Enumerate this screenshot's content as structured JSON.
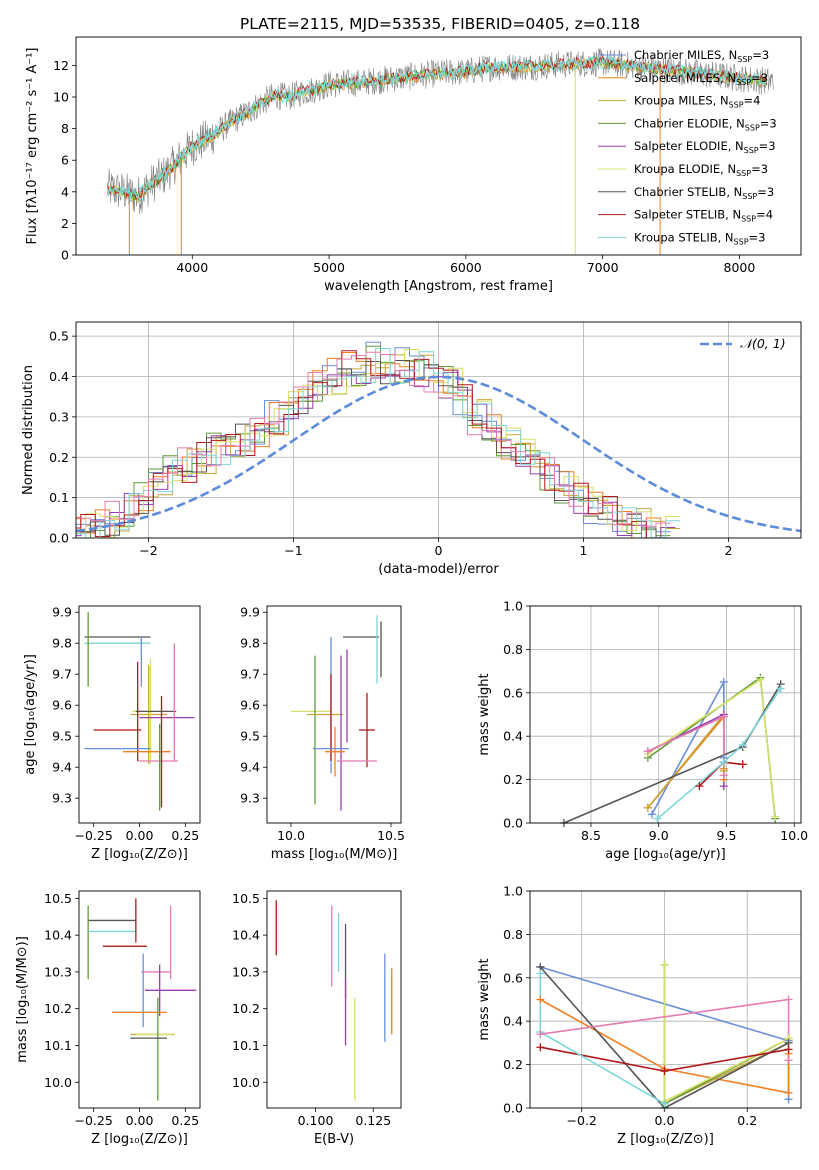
{
  "figure": {
    "title": "PLATE=2115, MJD=53535, FIBERID=0405, z=0.118"
  },
  "colors": {
    "Chabrier MILES": "#6a8ed8",
    "Salpeter MILES": "#ee7f22",
    "Kroupa MILES": "#c6a63a",
    "Chabrier ELODIE": "#5e9b3a",
    "Salpeter ELODIE": "#9a3fb0",
    "Kroupa ELODIE": "#d8e06a",
    "Chabrier STELIB": "#555555",
    "Salpeter STELIB": "#b0191c",
    "Kroupa STELIB": "#7ed6da",
    "pink": "#e57cb0",
    "normal_curve": "#5b8bd9",
    "grid": "#b0b0b0",
    "data_spectrum": "#7f7f7f"
  },
  "chart_data": [
    {
      "id": "spectrum",
      "type": "line",
      "xlabel": "wavelength [Angstrom, rest frame]",
      "ylabel": "Flux [fλ10⁻¹⁷ erg cm⁻² s⁻¹ A⁻¹]",
      "xlim": [
        3150,
        8450
      ],
      "ylim": [
        0,
        13.8
      ],
      "xticks": [
        4000,
        5000,
        6000,
        7000,
        8000
      ],
      "yticks": [
        0,
        2,
        4,
        6,
        8,
        10,
        12
      ],
      "grid": false,
      "legend_position": "upper right",
      "spectrum_profile": {
        "x": [
          3380,
          3500,
          3600,
          3700,
          3800,
          3900,
          4000,
          4100,
          4200,
          4300,
          4400,
          4500,
          4600,
          4700,
          4800,
          4900,
          5000,
          5200,
          5400,
          5600,
          5800,
          6000,
          6200,
          6400,
          6600,
          6800,
          7000,
          7200,
          7400,
          7600,
          7800,
          8000,
          8200
        ],
        "y": [
          4.2,
          4.0,
          3.7,
          4.5,
          5.1,
          6.0,
          6.9,
          7.3,
          7.9,
          8.5,
          9.0,
          9.6,
          10.1,
          10.0,
          10.3,
          10.5,
          10.8,
          10.9,
          11.1,
          11.3,
          11.5,
          11.6,
          11.9,
          11.9,
          12.0,
          12.1,
          12.2,
          12.0,
          11.8,
          11.6,
          11.4,
          11.2,
          11.0
        ]
      },
      "series": [
        {
          "name": "Chabrier MILES, N<sub>SSP</sub>=3"
        },
        {
          "name": "Salpeter MILES, N<sub>SSP</sub>=3"
        },
        {
          "name": "Kroupa MILES, N<sub>SSP</sub>=4"
        },
        {
          "name": "Chabrier ELODIE, N<sub>SSP</sub>=3"
        },
        {
          "name": "Salpeter ELODIE, N<sub>SSP</sub>=3"
        },
        {
          "name": "Kroupa ELODIE, N<sub>SSP</sub>=3"
        },
        {
          "name": "Chabrier STELIB, N<sub>SSP</sub>=3"
        },
        {
          "name": "Salpeter STELIB, N<sub>SSP</sub>=4"
        },
        {
          "name": "Kroupa STELIB, N<sub>SSP</sub>=3"
        }
      ]
    },
    {
      "id": "residuals",
      "type": "line",
      "xlabel": "(data-model)/error",
      "ylabel": "Normed distribution",
      "xlim": [
        -2.5,
        2.5
      ],
      "ylim": [
        0,
        0.535
      ],
      "xticks": [
        -2,
        -1,
        0,
        1,
        2
      ],
      "yticks": [
        0.0,
        0.1,
        0.2,
        0.3,
        0.4,
        0.5
      ],
      "grid": true,
      "legend": "𝒩(0, 1)",
      "legend_position": "upper right",
      "bin_width": 0.1,
      "histogram_profile": [
        0.02,
        0.03,
        0.05,
        0.07,
        0.1,
        0.13,
        0.16,
        0.18,
        0.2,
        0.22,
        0.24,
        0.24,
        0.26,
        0.3,
        0.33,
        0.35,
        0.38,
        0.4,
        0.42,
        0.41,
        0.44,
        0.42,
        0.43,
        0.42,
        0.4,
        0.38,
        0.34,
        0.3,
        0.27,
        0.24,
        0.22,
        0.19,
        0.16,
        0.13,
        0.1,
        0.08,
        0.06,
        0.04,
        0.03,
        0.02
      ]
    },
    {
      "id": "age-vs-Z",
      "type": "scatter",
      "xlabel": "Z [log₁₀(Z/Z⊙)]",
      "ylabel": "age  [log₁₀(age/yr)]",
      "xlim": [
        -0.33,
        0.33
      ],
      "ylim": [
        9.22,
        9.92
      ],
      "xticks": [
        -0.25,
        0.0,
        0.25
      ],
      "yticks": [
        9.3,
        9.4,
        9.5,
        9.6,
        9.7,
        9.8,
        9.9
      ],
      "points": [
        {
          "c": "Chabrier STELIB",
          "x": -0.12,
          "y": 9.82,
          "xe": 0.18,
          "ye": 0
        },
        {
          "c": "Kroupa STELIB",
          "x": -0.12,
          "y": 9.8,
          "xe": 0.18,
          "ye": 0
        },
        {
          "c": "Chabrier ELODIE",
          "x": -0.28,
          "y": 9.78,
          "xe": 0,
          "ye": 0.12
        },
        {
          "c": "Chabrier MILES",
          "x": 0.01,
          "y": 9.74,
          "xe": 0,
          "ye": 0.08
        },
        {
          "c": "Kroupa MILES",
          "x": 0.05,
          "y": 9.57,
          "xe": 0.1,
          "ye": 0.16
        },
        {
          "c": "Kroupa ELODIE",
          "x": 0.06,
          "y": 9.58,
          "xe": 0.1,
          "ye": 0.17
        },
        {
          "c": "Chabrier STELIB",
          "x": 0.09,
          "y": 9.58,
          "xe": 0.11,
          "ye": 0
        },
        {
          "c": "Salpeter ELODIE",
          "x": 0.15,
          "y": 9.56,
          "xe": 0.15,
          "ye": 0
        },
        {
          "c": "Salpeter STELIB",
          "x": -0.12,
          "y": 9.52,
          "xe": 0.13,
          "ye": 0
        },
        {
          "c": "Salpeter STELIB",
          "x": -0.01,
          "y": 9.58,
          "xe": 0,
          "ye": 0.16
        },
        {
          "c": "Chabrier MILES",
          "x": -0.12,
          "y": 9.46,
          "xe": 0.18,
          "ye": 0
        },
        {
          "c": "Salpeter MILES",
          "x": 0.04,
          "y": 9.45,
          "xe": 0.13,
          "ye": 0
        },
        {
          "c": "pink",
          "x": 0.1,
          "y": 9.42,
          "xe": 0.11,
          "ye": 0
        },
        {
          "c": "pink",
          "x": 0.19,
          "y": 9.61,
          "xe": 0,
          "ye": 0.19
        },
        {
          "c": "Chabrier ELODIE",
          "x": 0.11,
          "y": 9.4,
          "xe": 0,
          "ye": 0.14
        },
        {
          "c": "Salpeter STELIB",
          "x": 0.12,
          "y": 9.45,
          "xe": 0,
          "ye": 0.18
        }
      ]
    },
    {
      "id": "age-vs-mass",
      "type": "scatter",
      "xlabel": "mass [log₁₀(M/M⊙)]",
      "ylabel": "",
      "xlim": [
        9.88,
        10.55
      ],
      "ylim": [
        9.22,
        9.92
      ],
      "xticks": [
        10.0,
        10.5
      ],
      "yticks": [
        9.3,
        9.4,
        9.5,
        9.6,
        9.7,
        9.8,
        9.9
      ],
      "points": [
        {
          "c": "Chabrier STELIB",
          "x": 10.35,
          "y": 9.82,
          "xe": 0.09,
          "ye": 0
        },
        {
          "c": "Kroupa STELIB",
          "x": 10.43,
          "y": 9.78,
          "xe": 0,
          "ye": 0.11
        },
        {
          "c": "Chabrier STELIB",
          "x": 10.45,
          "y": 9.78,
          "xe": 0,
          "ye": 0.09
        },
        {
          "c": "Chabrier MILES",
          "x": 10.2,
          "y": 9.6,
          "xe": 0,
          "ye": 0.22
        },
        {
          "c": "Kroupa ELODIE",
          "x": 10.1,
          "y": 9.58,
          "xe": 0.1,
          "ye": 0
        },
        {
          "c": "Chabrier ELODIE",
          "x": 10.12,
          "y": 9.52,
          "xe": 0,
          "ye": 0.24
        },
        {
          "c": "Kroupa MILES",
          "x": 10.17,
          "y": 9.57,
          "xe": 0.09,
          "ye": 0
        },
        {
          "c": "Salpeter ELODIE",
          "x": 10.25,
          "y": 9.51,
          "xe": 0,
          "ye": 0.25
        },
        {
          "c": "Salpeter STELIB",
          "x": 10.2,
          "y": 9.56,
          "xe": 0,
          "ye": 0.14
        },
        {
          "c": "Salpeter STELIB",
          "x": 10.38,
          "y": 9.52,
          "xe": 0.04,
          "ye": 0.12
        },
        {
          "c": "Chabrier MILES",
          "x": 10.2,
          "y": 9.46,
          "xe": 0.09,
          "ye": 0
        },
        {
          "c": "Salpeter MILES",
          "x": 10.22,
          "y": 9.45,
          "xe": 0.05,
          "ye": 0.08
        },
        {
          "c": "pink",
          "x": 10.33,
          "y": 9.42,
          "xe": 0.1,
          "ye": 0
        },
        {
          "c": "Salpeter ELODIE",
          "x": 10.28,
          "y": 9.63,
          "xe": 0,
          "ye": 0.15
        }
      ]
    },
    {
      "id": "weight-vs-age",
      "type": "line",
      "xlabel": "age  [log₁₀(age/yr)]",
      "ylabel": "mass weight",
      "xlim": [
        8.05,
        10.05
      ],
      "ylim": [
        0,
        1
      ],
      "xticks": [
        8.5,
        9.0,
        9.5,
        10.0
      ],
      "yticks": [
        0.0,
        0.2,
        0.4,
        0.6,
        0.8,
        1.0
      ],
      "grid": true,
      "series": [
        {
          "c": "Chabrier MILES",
          "x": [
            8.95,
            9.48,
            9.48
          ],
          "y": [
            0.04,
            0.65,
            0.3
          ]
        },
        {
          "c": "Salpeter MILES",
          "x": [
            8.92,
            9.48,
            9.48,
            9.48
          ],
          "y": [
            0.07,
            0.49,
            0.2,
            0.25
          ]
        },
        {
          "c": "Kroupa MILES",
          "x": [
            8.92,
            9.48,
            9.48
          ],
          "y": [
            0.07,
            0.5,
            0.24
          ]
        },
        {
          "c": "Chabrier ELODIE",
          "x": [
            8.92,
            9.75,
            9.86
          ],
          "y": [
            0.3,
            0.67,
            0.02
          ]
        },
        {
          "c": "Salpeter ELODIE",
          "x": [
            8.92,
            9.48,
            9.48
          ],
          "y": [
            0.33,
            0.5,
            0.17
          ]
        },
        {
          "c": "Kroupa ELODIE",
          "x": [
            8.92,
            9.75,
            9.86
          ],
          "y": [
            0.32,
            0.66,
            0.03
          ]
        },
        {
          "c": "Chabrier STELIB",
          "x": [
            8.3,
            9.62,
            9.9
          ],
          "y": [
            0.0,
            0.35,
            0.64
          ]
        },
        {
          "c": "Salpeter STELIB",
          "x": [
            9.3,
            9.48,
            9.62,
            9.62
          ],
          "y": [
            0.17,
            0.28,
            0.27,
            0.27
          ]
        },
        {
          "c": "Kroupa STELIB",
          "x": [
            8.99,
            9.48,
            9.62,
            9.9
          ],
          "y": [
            0.02,
            0.28,
            0.36,
            0.62
          ]
        },
        {
          "c": "pink",
          "x": [
            8.92,
            9.48,
            9.48
          ],
          "y": [
            0.33,
            0.49,
            0.22
          ]
        }
      ]
    },
    {
      "id": "mass-vs-Z",
      "type": "scatter",
      "xlabel": "Z [log₁₀(Z/Z⊙)]",
      "ylabel": "mass [log₁₀(M/M⊙)]",
      "xlim": [
        -0.33,
        0.33
      ],
      "ylim": [
        9.93,
        10.52
      ],
      "xticks": [
        -0.25,
        0.0,
        0.25
      ],
      "yticks": [
        10.0,
        10.1,
        10.2,
        10.3,
        10.4,
        10.5
      ],
      "points": [
        {
          "c": "Chabrier STELIB",
          "x": -0.15,
          "y": 10.44,
          "xe": 0.13,
          "ye": 0
        },
        {
          "c": "Chabrier ELODIE",
          "x": -0.28,
          "y": 10.38,
          "xe": 0,
          "ye": 0.1
        },
        {
          "c": "Kroupa STELIB",
          "x": -0.15,
          "y": 10.41,
          "xe": 0.13,
          "ye": 0
        },
        {
          "c": "Salpeter STELIB",
          "x": -0.08,
          "y": 10.37,
          "xe": 0.12,
          "ye": 0
        },
        {
          "c": "Salpeter STELIB",
          "x": -0.02,
          "y": 10.44,
          "xe": 0,
          "ye": 0.06
        },
        {
          "c": "pink",
          "x": 0.09,
          "y": 10.3,
          "xe": 0.08,
          "ye": 0
        },
        {
          "c": "pink",
          "x": 0.17,
          "y": 10.38,
          "xe": 0,
          "ye": 0.1
        },
        {
          "c": "Salpeter ELODIE",
          "x": 0.17,
          "y": 10.25,
          "xe": 0.14,
          "ye": 0
        },
        {
          "c": "Salpeter ELODIE",
          "x": 0.11,
          "y": 10.25,
          "xe": 0,
          "ye": 0.07
        },
        {
          "c": "Chabrier MILES",
          "x": -0.03,
          "y": 10.19,
          "xe": 0.12,
          "ye": 0
        },
        {
          "c": "Chabrier MILES",
          "x": 0.02,
          "y": 10.25,
          "xe": 0,
          "ye": 0.1
        },
        {
          "c": "Salpeter MILES",
          "x": 0.0,
          "y": 10.19,
          "xe": 0.15,
          "ye": 0
        },
        {
          "c": "Kroupa MILES",
          "x": 0.07,
          "y": 10.13,
          "xe": 0.12,
          "ye": 0
        },
        {
          "c": "Kroupa ELODIE",
          "x": 0.08,
          "y": 10.13,
          "xe": 0.1,
          "ye": 0
        },
        {
          "c": "Chabrier ELODIE",
          "x": 0.1,
          "y": 10.09,
          "xe": 0,
          "ye": 0.14
        },
        {
          "c": "Chabrier STELIB",
          "x": 0.05,
          "y": 10.12,
          "xe": 0.1,
          "ye": 0
        }
      ]
    },
    {
      "id": "mass-vs-EBV",
      "type": "scatter",
      "xlabel": "E(B-V)",
      "ylabel": "",
      "xlim": [
        0.079,
        0.137
      ],
      "ylim": [
        9.93,
        10.52
      ],
      "xticks": [
        0.1,
        0.125
      ],
      "yticks": [
        10.0,
        10.1,
        10.2,
        10.3,
        10.4,
        10.5
      ],
      "points": [
        {
          "c": "Salpeter STELIB",
          "x": 0.083,
          "y": 10.42,
          "xe": 0,
          "ye": 0.075
        },
        {
          "c": "pink",
          "x": 0.107,
          "y": 10.37,
          "xe": 0,
          "ye": 0.11
        },
        {
          "c": "Kroupa STELIB",
          "x": 0.11,
          "y": 10.38,
          "xe": 0,
          "ye": 0.08
        },
        {
          "c": "Chabrier STELIB",
          "x": 0.113,
          "y": 10.33,
          "xe": 0,
          "ye": 0.1
        },
        {
          "c": "Salpeter ELODIE",
          "x": 0.113,
          "y": 10.19,
          "xe": 0,
          "ye": 0.09
        },
        {
          "c": "Kroupa ELODIE",
          "x": 0.117,
          "y": 10.09,
          "xe": 0,
          "ye": 0.14
        },
        {
          "c": "Chabrier MILES",
          "x": 0.13,
          "y": 10.23,
          "xe": 0,
          "ye": 0.12
        },
        {
          "c": "Salpeter MILES",
          "x": 0.133,
          "y": 10.22,
          "xe": 0,
          "ye": 0.09
        }
      ]
    },
    {
      "id": "weight-vs-Z",
      "type": "line",
      "xlabel": "Z [log₁₀(Z/Z⊙)]",
      "ylabel": "mass weight",
      "xlim": [
        -0.325,
        0.33
      ],
      "ylim": [
        0,
        1
      ],
      "xticks": [
        -0.2,
        0.0,
        0.2
      ],
      "yticks": [
        0.0,
        0.2,
        0.4,
        0.6,
        0.8,
        1.0
      ],
      "grid": true,
      "series": [
        {
          "c": "Chabrier MILES",
          "x": [
            -0.3,
            0.3,
            0.3
          ],
          "y": [
            0.65,
            0.31,
            0.04
          ]
        },
        {
          "c": "Salpeter MILES",
          "x": [
            -0.3,
            0.0,
            0.3,
            0.3
          ],
          "y": [
            0.5,
            0.18,
            0.07,
            0.25
          ]
        },
        {
          "c": "Kroupa MILES",
          "x": [
            0.0,
            0.3
          ],
          "y": [
            0.02,
            0.3
          ]
        },
        {
          "c": "Chabrier ELODIE",
          "x": [
            0.0,
            0.0,
            0.3
          ],
          "y": [
            0.66,
            0.02,
            0.32
          ]
        },
        {
          "c": "Kroupa ELODIE",
          "x": [
            0.0,
            0.0,
            0.3
          ],
          "y": [
            0.66,
            0.03,
            0.32
          ]
        },
        {
          "c": "Chabrier STELIB",
          "x": [
            -0.3,
            0.0,
            0.3
          ],
          "y": [
            0.65,
            0.0,
            0.3
          ]
        },
        {
          "c": "Salpeter STELIB",
          "x": [
            -0.3,
            0.0,
            0.3
          ],
          "y": [
            0.28,
            0.17,
            0.27
          ]
        },
        {
          "c": "Kroupa STELIB",
          "x": [
            -0.3,
            -0.3,
            0.0
          ],
          "y": [
            0.62,
            0.35,
            0.02
          ]
        },
        {
          "c": "pink",
          "x": [
            -0.3,
            0.3,
            0.3
          ],
          "y": [
            0.34,
            0.5,
            0.22
          ]
        }
      ]
    }
  ]
}
